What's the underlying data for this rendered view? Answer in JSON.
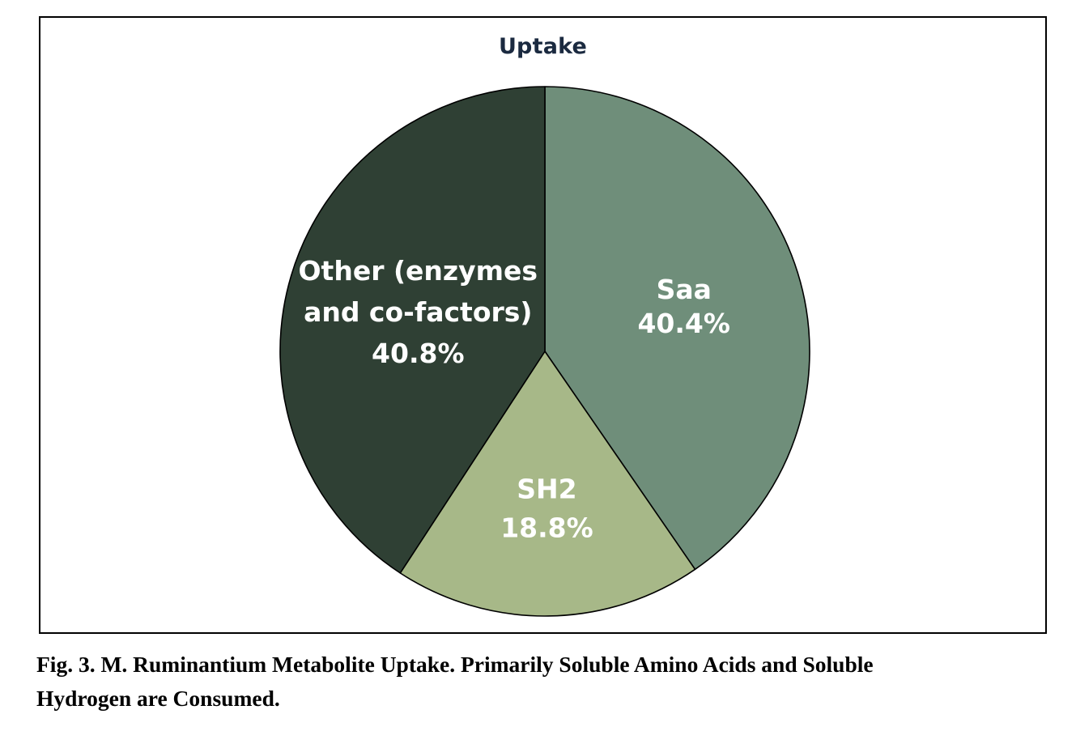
{
  "chart_data": {
    "type": "pie",
    "title": "Uptake",
    "slices": [
      {
        "label_lines": [
          "Saa"
        ],
        "value": 40.4,
        "value_text": "40.4%",
        "color": "#6f8e7a"
      },
      {
        "label_lines": [
          "SH2"
        ],
        "value": 18.8,
        "value_text": "18.8%",
        "color": "#a7b888"
      },
      {
        "label_lines": [
          "Other (enzymes",
          "and co-factors)"
        ],
        "value": 40.8,
        "value_text": "40.8%",
        "color": "#2f4034"
      }
    ],
    "start_angle_deg": 0,
    "direction": "clockwise",
    "edge_color": "#000000",
    "label_color": "#ffffff"
  },
  "caption": {
    "line1": "Fig. 3. M. Ruminantium Metabolite Uptake. Primarily Soluble Amino Acids and Soluble",
    "line2": "Hydrogen are Consumed."
  }
}
